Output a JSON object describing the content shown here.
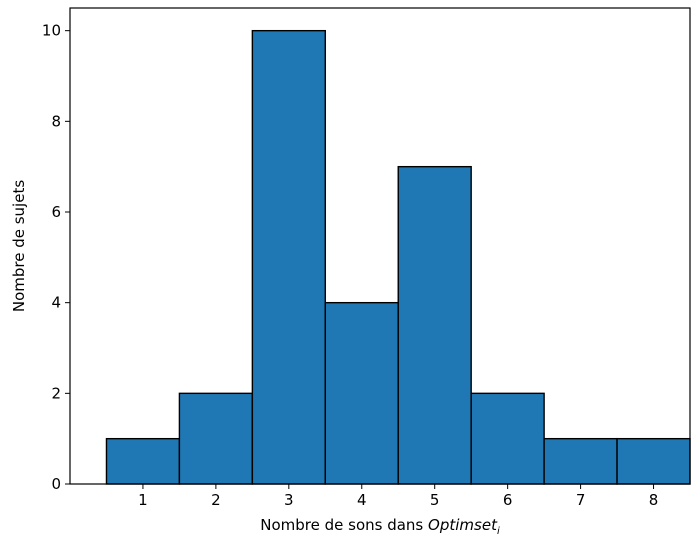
{
  "chart_data": {
    "type": "bar",
    "subtype": "histogram",
    "categories": [
      "1",
      "2",
      "3",
      "4",
      "5",
      "6",
      "7",
      "8"
    ],
    "values": [
      1,
      2,
      10,
      4,
      7,
      2,
      1,
      1
    ],
    "xlabel": {
      "prefix": "Nombre de sons dans ",
      "italic": "Optimset",
      "subscript": "i"
    },
    "ylabel": "Nombre de sujets",
    "xlim": [
      0.0,
      8.5
    ],
    "ylim": [
      0,
      10.5
    ],
    "xticks": [
      "1",
      "2",
      "3",
      "4",
      "5",
      "6",
      "7",
      "8"
    ],
    "yticks": [
      "0",
      "2",
      "4",
      "6",
      "8",
      "10"
    ],
    "grid": false,
    "legend": "none",
    "colors": {
      "bar_fill": "#1f77b4",
      "bar_edge": "#000000",
      "axis": "#000000"
    }
  }
}
